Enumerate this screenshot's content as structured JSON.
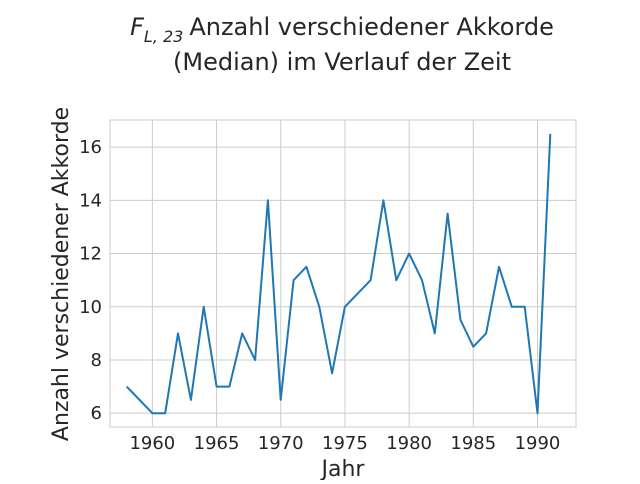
{
  "chart_data": {
    "type": "line",
    "title_sub_label": "L, 23",
    "title_line1_rest": "Anzahl verschiedener Akkorde",
    "title_line2": "(Median) im Verlauf der Zeit",
    "xlabel": "Jahr",
    "ylabel": "Anzahl verschiedener Akkorde",
    "xlim": [
      1956.7,
      1993.0
    ],
    "ylim": [
      5.48,
      17.02
    ],
    "xticks": [
      1960,
      1965,
      1970,
      1975,
      1980,
      1985,
      1990
    ],
    "yticks": [
      6,
      8,
      10,
      12,
      14,
      16
    ],
    "line_color": "#1f77b4",
    "grid": true,
    "series": [
      {
        "name": "Median",
        "x": [
          1958,
          1960,
          1961,
          1962,
          1963,
          1964,
          1965,
          1966,
          1967,
          1968,
          1969,
          1970,
          1971,
          1972,
          1973,
          1974,
          1975,
          1977,
          1978,
          1979,
          1980,
          1981,
          1982,
          1983,
          1984,
          1985,
          1986,
          1987,
          1988,
          1989,
          1990,
          1991
        ],
        "values": [
          7,
          6,
          6,
          9,
          6.5,
          10,
          7,
          7,
          9,
          8,
          14,
          6.5,
          11,
          11.5,
          10,
          7.5,
          10,
          11,
          14,
          11,
          12,
          11,
          9,
          13.5,
          9.5,
          8.5,
          9,
          11.5,
          10,
          10,
          6,
          16.5
        ]
      }
    ]
  }
}
